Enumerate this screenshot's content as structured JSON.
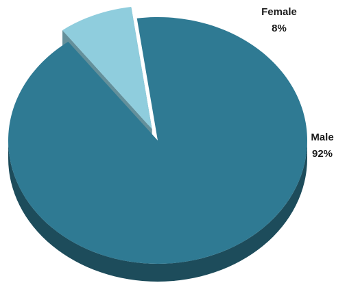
{
  "chart_data": {
    "type": "pie",
    "title": "",
    "style": "3d",
    "categories": [
      "Male",
      "Female"
    ],
    "values": [
      92,
      8
    ],
    "unit": "%",
    "colors": [
      "#2f7a93",
      "#8fcddd"
    ],
    "exploded": "Female",
    "labels": [
      {
        "name": "Male",
        "pct": "92%"
      },
      {
        "name": "Female",
        "pct": "8%"
      }
    ],
    "legend": "none"
  }
}
